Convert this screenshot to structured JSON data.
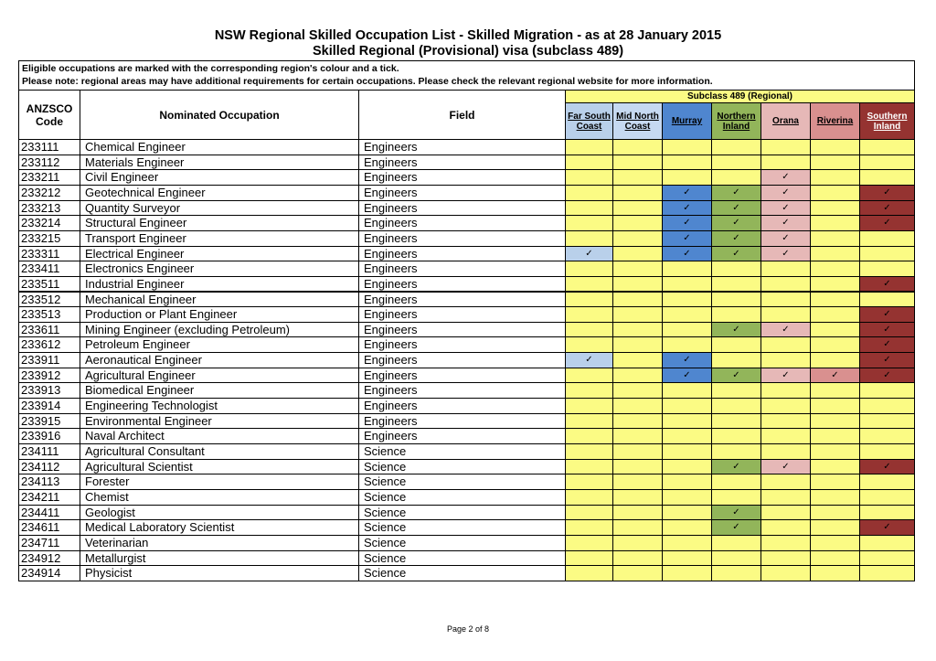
{
  "header": {
    "title": "NSW Regional Skilled Occupation List - Skilled Migration - as at 28 January 2015",
    "subtitle": "Skilled Regional (Provisional) visa (subclass 489)"
  },
  "notes": [
    "Eligible occupations are marked with the corresponding region's colour and a tick.",
    "Please note: regional areas may have additional requirements for certain occupations. Please check the relevant regional website for more information."
  ],
  "table": {
    "columns": {
      "code": "ANZSCO Code",
      "occupation": "Nominated Occupation",
      "field": "Field"
    },
    "group": "Subclass 489 (Regional)",
    "empty_color": "#fbfb84",
    "regions": [
      {
        "name": "Far South Coast",
        "color": "#b9d0ea"
      },
      {
        "name": "Mid North Coast",
        "color": "#c6d9f1"
      },
      {
        "name": "Murray",
        "color": "#4f86cf"
      },
      {
        "name": "Northern Inland",
        "color": "#92b55a"
      },
      {
        "name": "Orana",
        "color": "#e6b8b7"
      },
      {
        "name": "Riverina",
        "color": "#d9908f"
      },
      {
        "name": "Southern Inland",
        "color": "#953331"
      }
    ],
    "rows": [
      {
        "code": "233111",
        "occupation": "Chemical Engineer",
        "field": "Engineers",
        "ticks": [
          null,
          null,
          null,
          null,
          null,
          null,
          null
        ]
      },
      {
        "code": "233112",
        "occupation": "Materials Engineer",
        "field": "Engineers",
        "ticks": [
          null,
          null,
          null,
          null,
          null,
          null,
          null
        ]
      },
      {
        "code": "233211",
        "occupation": "Civil Engineer",
        "field": "Engineers",
        "ticks": [
          null,
          null,
          null,
          null,
          "✓",
          null,
          null
        ]
      },
      {
        "code": "233212",
        "occupation": "Geotechnical Engineer",
        "field": "Engineers",
        "ticks": [
          null,
          null,
          "✓",
          "✓",
          "✓",
          null,
          "✓"
        ]
      },
      {
        "code": "233213",
        "occupation": "Quantity Surveyor",
        "field": "Engineers",
        "ticks": [
          null,
          null,
          "✓",
          "✓",
          "✓",
          null,
          "✓"
        ]
      },
      {
        "code": "233214",
        "occupation": "Structural Engineer",
        "field": "Engineers",
        "ticks": [
          null,
          null,
          "✓",
          "✓",
          "✓",
          null,
          "✓"
        ]
      },
      {
        "code": "233215",
        "occupation": "Transport Engineer",
        "field": "Engineers",
        "ticks": [
          null,
          null,
          "✓",
          "✓",
          "✓",
          null,
          null
        ]
      },
      {
        "code": "233311",
        "occupation": "Electrical Engineer",
        "field": "Engineers",
        "ticks": [
          "✓",
          null,
          "✓",
          "✓",
          "✓",
          null,
          null
        ]
      },
      {
        "code": "233411",
        "occupation": "Electronics Engineer",
        "field": "Engineers",
        "ticks": [
          null,
          null,
          null,
          null,
          null,
          null,
          null
        ]
      },
      {
        "code": "233511",
        "occupation": "Industrial Engineer",
        "field": "Engineers",
        "ticks": [
          null,
          null,
          null,
          null,
          null,
          null,
          "✓"
        ]
      },
      {
        "code": "233512",
        "occupation": "Mechanical Engineer",
        "field": "Engineers",
        "ticks": [
          null,
          null,
          null,
          null,
          null,
          null,
          null
        ]
      },
      {
        "code": "233513",
        "occupation": "Production or Plant Engineer",
        "field": "Engineers",
        "ticks": [
          null,
          null,
          null,
          null,
          null,
          null,
          "✓"
        ]
      },
      {
        "code": "233611",
        "occupation": "Mining Engineer (excluding Petroleum)",
        "field": "Engineers",
        "ticks": [
          null,
          null,
          null,
          "✓",
          "✓",
          null,
          "✓"
        ]
      },
      {
        "code": "233612",
        "occupation": "Petroleum Engineer",
        "field": "Engineers",
        "ticks": [
          null,
          null,
          null,
          null,
          null,
          null,
          "✓"
        ]
      },
      {
        "code": "233911",
        "occupation": "Aeronautical Engineer",
        "field": "Engineers",
        "ticks": [
          "✓",
          null,
          "✓",
          null,
          null,
          null,
          "✓"
        ]
      },
      {
        "code": "233912",
        "occupation": "Agricultural Engineer",
        "field": "Engineers",
        "ticks": [
          null,
          null,
          "✓",
          "✓",
          "✓",
          "✓",
          "✓"
        ]
      },
      {
        "code": "233913",
        "occupation": "Biomedical Engineer",
        "field": "Engineers",
        "ticks": [
          null,
          null,
          null,
          null,
          null,
          null,
          null
        ]
      },
      {
        "code": "233914",
        "occupation": "Engineering Technologist",
        "field": "Engineers",
        "ticks": [
          null,
          null,
          null,
          null,
          null,
          null,
          null
        ]
      },
      {
        "code": "233915",
        "occupation": "Environmental Engineer",
        "field": "Engineers",
        "ticks": [
          null,
          null,
          null,
          null,
          null,
          null,
          null
        ]
      },
      {
        "code": "233916",
        "occupation": "Naval Architect",
        "field": "Engineers",
        "ticks": [
          null,
          null,
          null,
          null,
          null,
          null,
          null
        ]
      },
      {
        "code": "234111",
        "occupation": "Agricultural Consultant",
        "field": "Science",
        "ticks": [
          null,
          null,
          null,
          null,
          null,
          null,
          null
        ]
      },
      {
        "code": "234112",
        "occupation": "Agricultural Scientist",
        "field": "Science",
        "ticks": [
          null,
          null,
          null,
          "✓",
          "✓",
          null,
          "✓"
        ]
      },
      {
        "code": "234113",
        "occupation": "Forester",
        "field": "Science",
        "ticks": [
          null,
          null,
          null,
          null,
          null,
          null,
          null
        ]
      },
      {
        "code": "234211",
        "occupation": "Chemist",
        "field": "Science",
        "ticks": [
          null,
          null,
          null,
          null,
          null,
          null,
          null
        ]
      },
      {
        "code": "234411",
        "occupation": "Geologist",
        "field": "Science",
        "ticks": [
          null,
          null,
          null,
          "✓",
          null,
          null,
          null
        ]
      },
      {
        "code": "234611",
        "occupation": "Medical Laboratory Scientist",
        "field": "Science",
        "ticks": [
          null,
          null,
          null,
          "✓",
          null,
          null,
          "✓"
        ]
      },
      {
        "code": "234711",
        "occupation": "Veterinarian",
        "field": "Science",
        "ticks": [
          null,
          null,
          null,
          null,
          null,
          null,
          null
        ]
      },
      {
        "code": "234912",
        "occupation": "Metallurgist",
        "field": "Science",
        "ticks": [
          null,
          null,
          null,
          null,
          null,
          null,
          null
        ]
      },
      {
        "code": "234914",
        "occupation": "Physicist",
        "field": "Science",
        "ticks": [
          null,
          null,
          null,
          null,
          null,
          null,
          null
        ]
      }
    ]
  },
  "footer": "Page 2 of 8"
}
